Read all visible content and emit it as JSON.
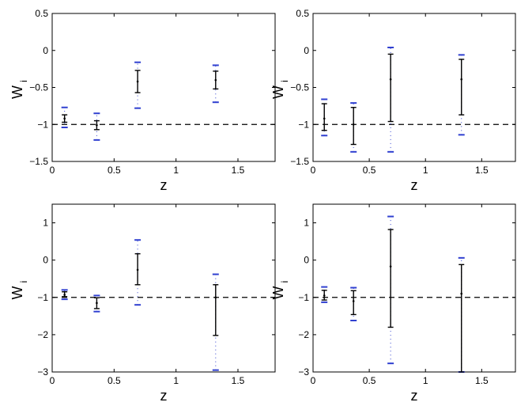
{
  "chart_data": [
    {
      "type": "errorbar",
      "xlabel": "z",
      "ylabel": "W",
      "ylabel_subscript": "i",
      "xlim": [
        0,
        1.8
      ],
      "ylim": [
        -1.5,
        0.5
      ],
      "xticks": [
        "0",
        "0.5",
        "1",
        "1.5"
      ],
      "yticks": [
        "0.5",
        "0",
        "−0.5",
        "−1",
        "−1.5"
      ],
      "reference_line": -1,
      "points": [
        {
          "x": 0.1,
          "y": -0.92,
          "err1": [
            -0.97,
            -0.87
          ],
          "err2": [
            -1.04,
            -0.77
          ]
        },
        {
          "x": 0.36,
          "y": -1.01,
          "err1": [
            -1.07,
            -0.95
          ],
          "err2": [
            -1.21,
            -0.85
          ]
        },
        {
          "x": 0.69,
          "y": -0.42,
          "err1": [
            -0.57,
            -0.27
          ],
          "err2": [
            -0.78,
            -0.16
          ]
        },
        {
          "x": 1.32,
          "y": -0.4,
          "err1": [
            -0.52,
            -0.28
          ],
          "err2": [
            -0.7,
            -0.2
          ]
        }
      ]
    },
    {
      "type": "errorbar",
      "xlabel": "z",
      "ylabel": "W",
      "ylabel_subscript": "i",
      "xlim": [
        0,
        1.8
      ],
      "ylim": [
        -1.5,
        0.5
      ],
      "xticks": [
        "0",
        "0.5",
        "1",
        "1.5"
      ],
      "yticks": [
        "0.5",
        "0",
        "−0.5",
        "−1",
        "−1.5"
      ],
      "reference_line": -1,
      "points": [
        {
          "x": 0.1,
          "y": -0.92,
          "err1": [
            -1.08,
            -0.72
          ],
          "err2": [
            -1.15,
            -0.66
          ]
        },
        {
          "x": 0.36,
          "y": -1.0,
          "err1": [
            -1.27,
            -0.77
          ],
          "err2": [
            -1.37,
            -0.71
          ]
        },
        {
          "x": 0.69,
          "y": -0.39,
          "err1": [
            -0.96,
            -0.05
          ],
          "err2": [
            -1.37,
            0.04
          ]
        },
        {
          "x": 1.32,
          "y": -0.39,
          "err1": [
            -0.87,
            -0.12
          ],
          "err2": [
            -1.14,
            -0.06
          ]
        }
      ]
    },
    {
      "type": "errorbar",
      "xlabel": "z",
      "ylabel": "W",
      "ylabel_subscript": "i",
      "xlim": [
        0,
        1.8
      ],
      "ylim": [
        -3,
        1.5
      ],
      "xticks": [
        "0",
        "0.5",
        "1",
        "1.5"
      ],
      "yticks": [
        "1",
        "0",
        "−1",
        "−2",
        "−3"
      ],
      "reference_line": -1,
      "points": [
        {
          "x": 0.1,
          "y": -0.93,
          "err1": [
            -0.98,
            -0.85
          ],
          "err2": [
            -1.05,
            -0.8
          ]
        },
        {
          "x": 0.36,
          "y": -1.15,
          "err1": [
            -1.3,
            -1.01
          ],
          "err2": [
            -1.38,
            -0.95
          ]
        },
        {
          "x": 0.69,
          "y": -0.26,
          "err1": [
            -0.66,
            0.17
          ],
          "err2": [
            -1.2,
            0.54
          ]
        },
        {
          "x": 1.32,
          "y": -1.0,
          "err1": [
            -2.02,
            -0.66
          ],
          "err2": [
            -2.95,
            -0.38
          ]
        }
      ]
    },
    {
      "type": "errorbar",
      "xlabel": "z",
      "ylabel": "W",
      "ylabel_subscript": "i",
      "xlim": [
        0,
        1.8
      ],
      "ylim": [
        -3,
        1.5
      ],
      "xticks": [
        "0",
        "0.5",
        "1",
        "1.5"
      ],
      "yticks": [
        "1",
        "0",
        "−1",
        "−2",
        "−3"
      ],
      "reference_line": -1,
      "points": [
        {
          "x": 0.1,
          "y": -0.95,
          "err1": [
            -1.07,
            -0.81
          ],
          "err2": [
            -1.13,
            -0.72
          ]
        },
        {
          "x": 0.36,
          "y": -1.1,
          "err1": [
            -1.46,
            -0.82
          ],
          "err2": [
            -1.62,
            -0.74
          ]
        },
        {
          "x": 0.69,
          "y": -0.17,
          "err1": [
            -1.8,
            0.82
          ],
          "err2": [
            -2.77,
            1.17
          ]
        },
        {
          "x": 1.32,
          "y": -0.9,
          "err1": [
            -3.0,
            -0.12
          ],
          "err2": [
            -3.0,
            0.06
          ]
        }
      ]
    }
  ]
}
